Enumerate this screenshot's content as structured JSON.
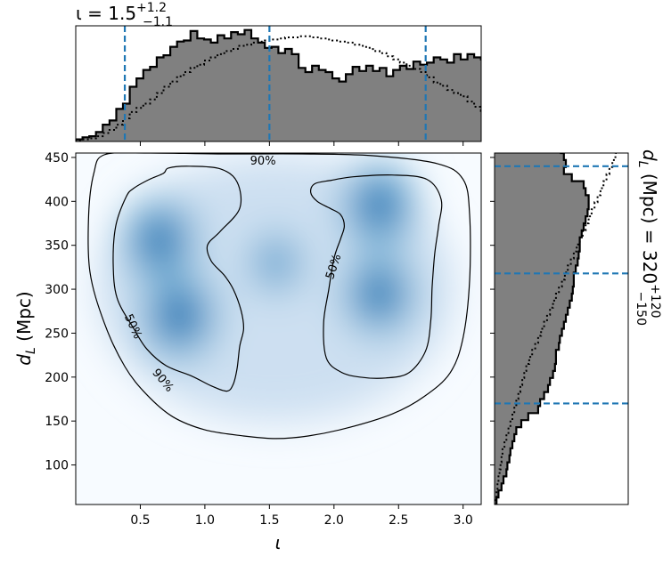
{
  "chart_data": [
    {
      "type": "heatmap",
      "panel": "joint",
      "xlabel": "ι",
      "ylabel_main": "d",
      "ylabel_sub": "L",
      "ylabel_unit": " (Mpc)",
      "xlim": [
        0.0,
        3.14
      ],
      "ylim": [
        55,
        455
      ],
      "xticks": [
        0.5,
        1.0,
        1.5,
        2.0,
        2.5,
        3.0
      ],
      "xtick_labels": [
        "0.5",
        "1.0",
        "1.5",
        "2.0",
        "2.5",
        "3.0"
      ],
      "yticks": [
        100,
        150,
        200,
        250,
        300,
        350,
        400,
        450
      ],
      "ytick_labels": [
        "100",
        "150",
        "200",
        "250",
        "300",
        "350",
        "400",
        "450"
      ],
      "colormap": "Blues",
      "density_peaks": [
        {
          "x": 0.65,
          "y": 355,
          "weight": 0.95
        },
        {
          "x": 0.8,
          "y": 270,
          "weight": 1.0
        },
        {
          "x": 2.35,
          "y": 395,
          "weight": 0.95
        },
        {
          "x": 2.35,
          "y": 295,
          "weight": 0.9
        },
        {
          "x": 1.55,
          "y": 330,
          "weight": 0.35
        }
      ],
      "contour_labels": [
        {
          "text": "50%",
          "x": 0.45,
          "y": 258,
          "angle": 65
        },
        {
          "text": "90%",
          "x": 0.68,
          "y": 197,
          "angle": 50
        },
        {
          "text": "50%",
          "x": 1.99,
          "y": 326,
          "angle": -72
        },
        {
          "text": "90%",
          "x": 1.45,
          "y": 447,
          "angle": 0
        }
      ],
      "contours": {
        "outer_90": [
          [
            0.22,
            453
          ],
          [
            0.55,
            455
          ],
          [
            1.1,
            454
          ],
          [
            1.75,
            454
          ],
          [
            2.3,
            452
          ],
          [
            2.8,
            443
          ],
          [
            3.0,
            425
          ],
          [
            3.05,
            385
          ],
          [
            3.05,
            310
          ],
          [
            3.0,
            245
          ],
          [
            2.9,
            205
          ],
          [
            2.7,
            178
          ],
          [
            2.45,
            158
          ],
          [
            2.1,
            142
          ],
          [
            1.8,
            133
          ],
          [
            1.55,
            130
          ],
          [
            1.3,
            133
          ],
          [
            1.0,
            140
          ],
          [
            0.75,
            155
          ],
          [
            0.55,
            180
          ],
          [
            0.38,
            212
          ],
          [
            0.22,
            262
          ],
          [
            0.11,
            320
          ],
          [
            0.1,
            385
          ],
          [
            0.14,
            432
          ],
          [
            0.22,
            453
          ]
        ],
        "left_50": [
          [
            0.45,
            415
          ],
          [
            0.57,
            425
          ],
          [
            0.68,
            432
          ],
          [
            0.72,
            438
          ],
          [
            0.88,
            440
          ],
          [
            1.12,
            437
          ],
          [
            1.25,
            422
          ],
          [
            1.27,
            392
          ],
          [
            1.12,
            366
          ],
          [
            1.02,
            350
          ],
          [
            1.05,
            332
          ],
          [
            1.15,
            316
          ],
          [
            1.22,
            300
          ],
          [
            1.28,
            276
          ],
          [
            1.3,
            255
          ],
          [
            1.27,
            235
          ],
          [
            1.25,
            210
          ],
          [
            1.22,
            192
          ],
          [
            1.17,
            184
          ],
          [
            1.05,
            190
          ],
          [
            0.9,
            201
          ],
          [
            0.7,
            213
          ],
          [
            0.55,
            232
          ],
          [
            0.45,
            255
          ],
          [
            0.32,
            290
          ],
          [
            0.29,
            330
          ],
          [
            0.31,
            372
          ],
          [
            0.39,
            405
          ],
          [
            0.45,
            415
          ]
        ],
        "right_50": [
          [
            1.85,
            420
          ],
          [
            1.98,
            424
          ],
          [
            2.15,
            428
          ],
          [
            2.45,
            430
          ],
          [
            2.72,
            425
          ],
          [
            2.83,
            402
          ],
          [
            2.81,
            372
          ],
          [
            2.78,
            340
          ],
          [
            2.76,
            302
          ],
          [
            2.75,
            265
          ],
          [
            2.71,
            230
          ],
          [
            2.58,
            205
          ],
          [
            2.4,
            199
          ],
          [
            2.2,
            200
          ],
          [
            2.05,
            206
          ],
          [
            1.94,
            222
          ],
          [
            1.92,
            262
          ],
          [
            1.96,
            300
          ],
          [
            2.0,
            335
          ],
          [
            2.05,
            357
          ],
          [
            2.08,
            372
          ],
          [
            2.05,
            385
          ],
          [
            1.97,
            392
          ],
          [
            1.87,
            400
          ],
          [
            1.82,
            410
          ],
          [
            1.85,
            420
          ]
        ]
      }
    },
    {
      "type": "histogram",
      "panel": "top-marginal",
      "title_prefix": "ι = 1.5",
      "title_sup": "+1.2",
      "title_sub": "−1.1",
      "median": 1.5,
      "lower": 0.38,
      "upper": 2.71,
      "bin_start": 0.0,
      "bin_width": 0.0523,
      "posterior_heights": [
        2,
        4,
        5,
        9,
        16,
        20,
        31,
        36,
        52,
        60,
        68,
        71,
        80,
        82,
        90,
        95,
        96,
        105,
        98,
        97,
        94,
        101,
        98,
        104,
        102,
        106,
        98,
        94,
        89,
        90,
        84,
        88,
        83,
        70,
        66,
        72,
        68,
        66,
        60,
        57,
        64,
        71,
        67,
        72,
        67,
        70,
        62,
        68,
        72,
        69,
        76,
        73,
        75,
        80,
        78,
        75,
        83,
        78,
        83,
        80,
        78,
        76,
        75,
        70,
        58,
        53,
        45,
        38,
        33,
        25
      ],
      "prior_heights": [
        1,
        2,
        3,
        5,
        8,
        11,
        16,
        22,
        28,
        32,
        36,
        40,
        46,
        52,
        57,
        62,
        66,
        70,
        73,
        77,
        80,
        83,
        86,
        88,
        91,
        92,
        94,
        95,
        96,
        97,
        98,
        99,
        99,
        100,
        100,
        99,
        98,
        97,
        96,
        95,
        94,
        92,
        91,
        89,
        86,
        84,
        81,
        78,
        75,
        72,
        69,
        66,
        61,
        56,
        53,
        49,
        46,
        43,
        38,
        33,
        29,
        25,
        21,
        17,
        13,
        10,
        7,
        5,
        3,
        2
      ]
    },
    {
      "type": "histogram",
      "panel": "right-marginal",
      "rotated_label_prefix": "d",
      "rotated_label_sub_L": "L",
      "rotated_label_unit": " (Mpc) = 320",
      "rotated_label_sup": "+120",
      "rotated_label_sub": "−150",
      "median": 318,
      "lower": 170,
      "upper": 440,
      "bin_start": 55,
      "bin_width": 8,
      "posterior_widths": [
        2,
        4,
        7,
        9,
        12,
        13,
        15,
        16,
        18,
        20,
        22,
        27,
        34,
        44,
        46,
        50,
        54,
        56,
        59,
        61,
        62,
        62,
        65,
        66,
        68,
        70,
        72,
        74,
        76,
        78,
        79,
        80,
        80,
        82,
        84,
        85,
        86,
        86,
        88,
        90,
        92,
        94,
        95,
        95,
        92,
        90,
        78,
        70,
        72,
        70,
        67
      ],
      "prior_widths": [
        1,
        2,
        3,
        4,
        5,
        6,
        7,
        8,
        10,
        12,
        14,
        16,
        18,
        20,
        22,
        24,
        26,
        28,
        30,
        32,
        35,
        38,
        41,
        44,
        47,
        50,
        53,
        56,
        59,
        62,
        65,
        68,
        71,
        74,
        77,
        80,
        83,
        86,
        89,
        92,
        95,
        98,
        101,
        104,
        107,
        110,
        113,
        116,
        119,
        122,
        125
      ]
    }
  ]
}
